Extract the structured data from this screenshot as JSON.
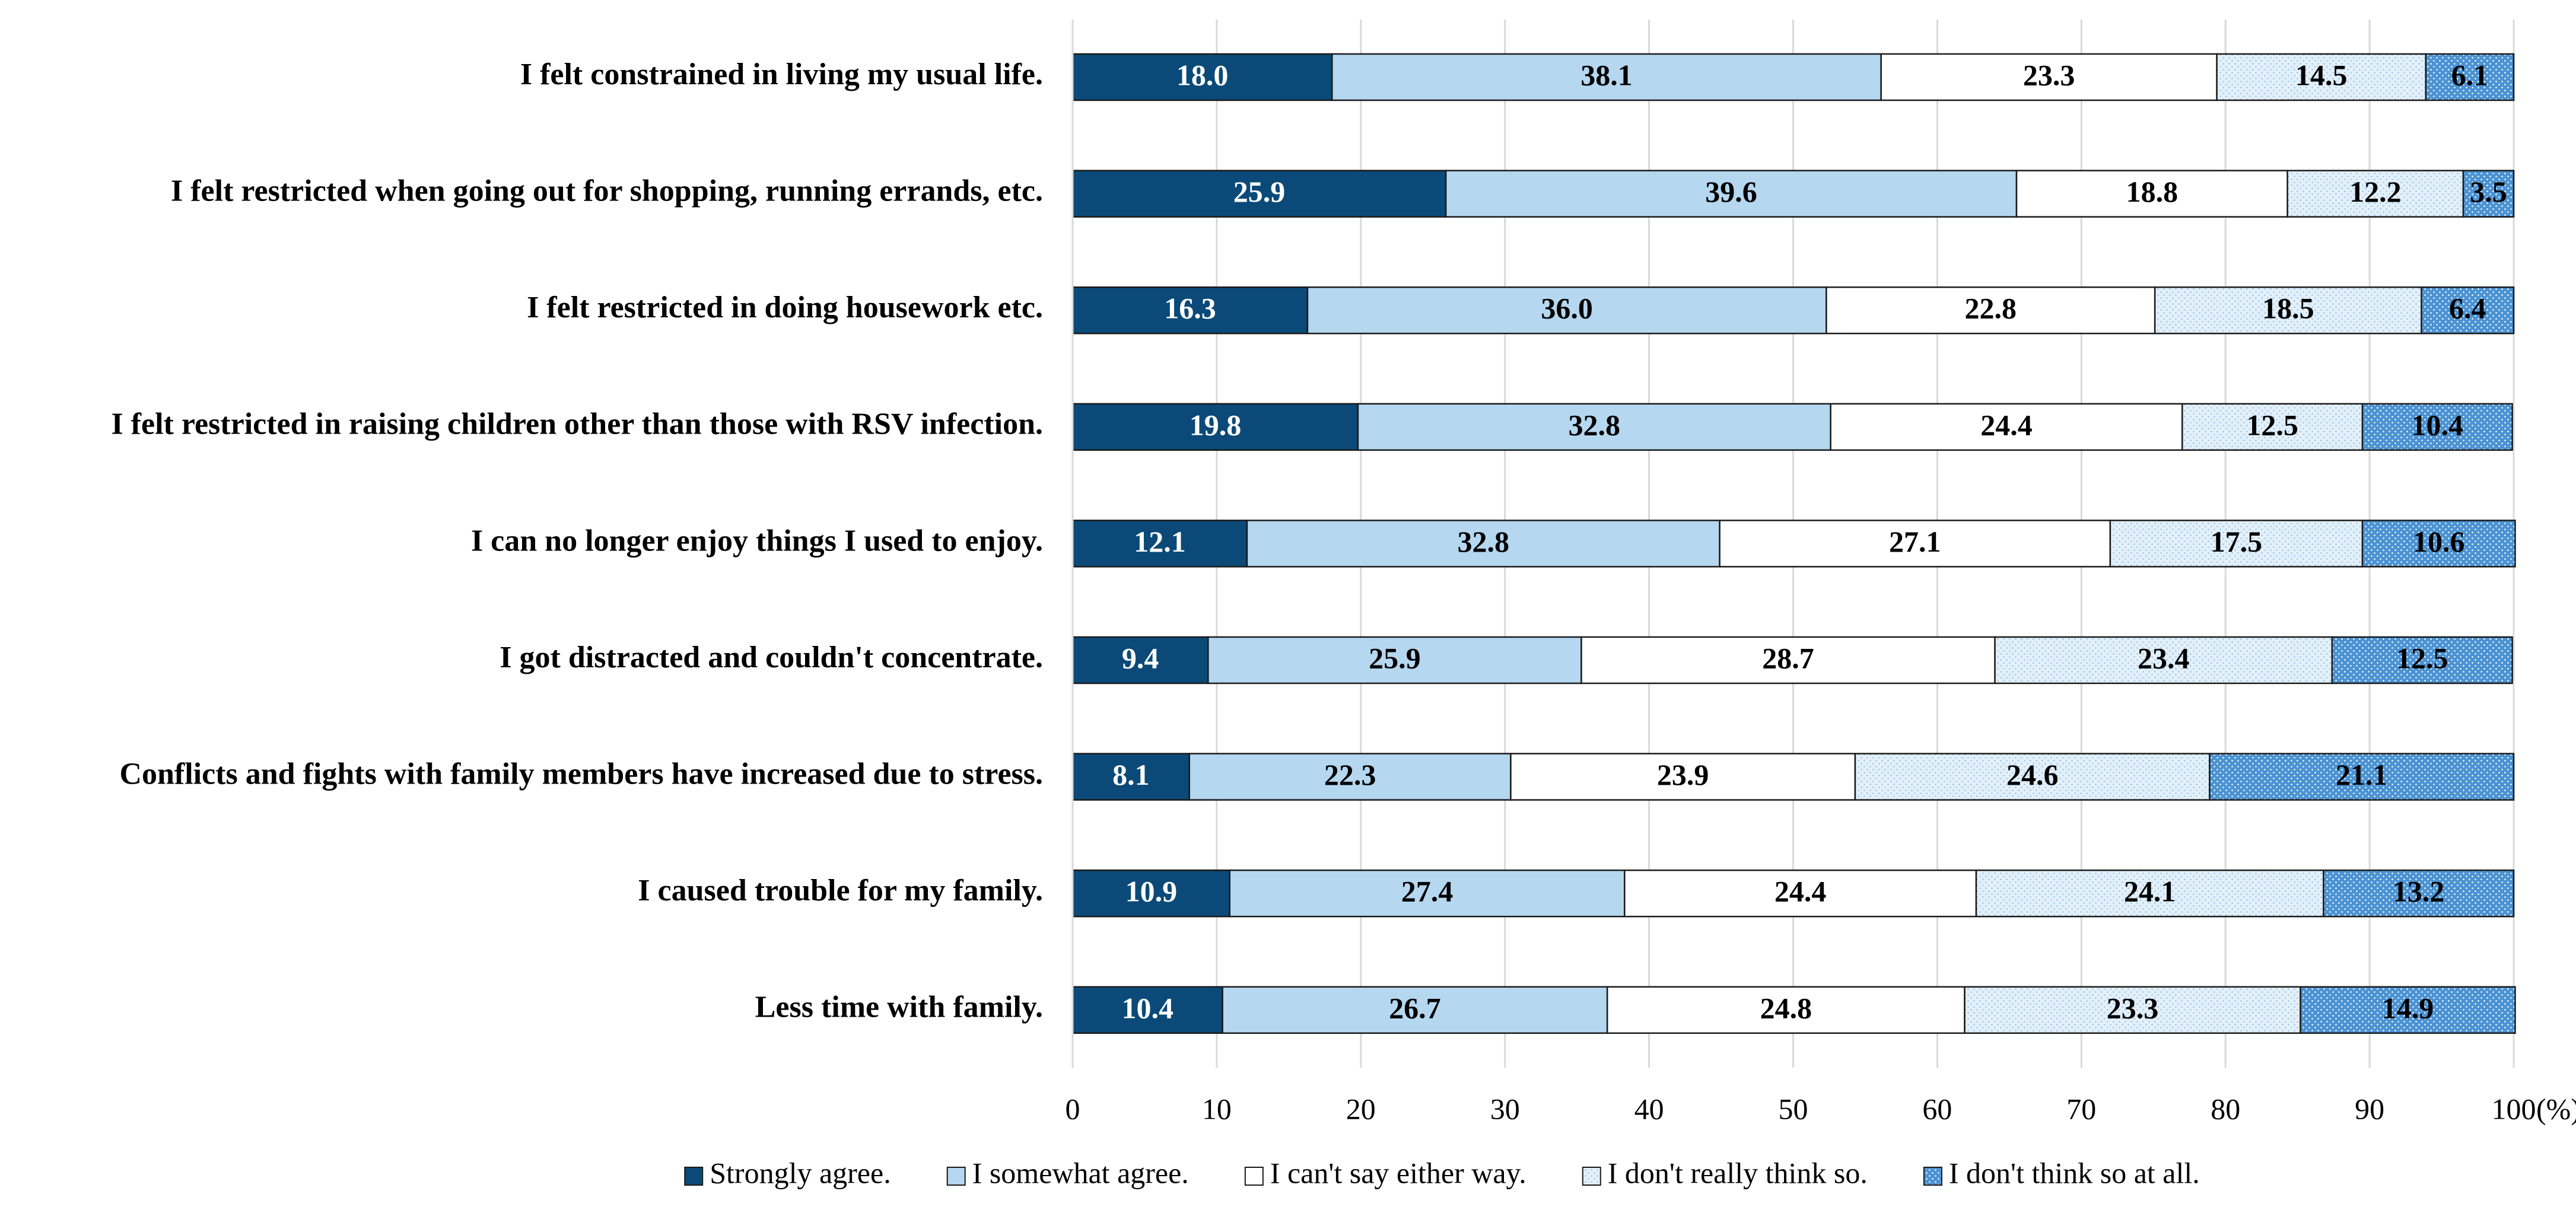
{
  "chart_data": {
    "type": "stacked_barh",
    "categories": [
      "I felt constrained in living my usual life.",
      "I felt restricted when going out for shopping, running errands, etc.",
      "I felt restricted in doing housework etc.",
      "I felt restricted in raising children other than those with RSV infection.",
      "I can no longer enjoy things I used to enjoy.",
      "I got distracted and couldn't concentrate.",
      "Conflicts and fights with family members have increased due to stress.",
      "I caused trouble for my family.",
      "Less time with family."
    ],
    "series": [
      {
        "name": "Strongly agree.",
        "color": "#0b4a78",
        "pattern": "none",
        "values": [
          18.0,
          25.9,
          16.3,
          19.8,
          12.1,
          9.4,
          8.1,
          10.9,
          10.4
        ],
        "value_labels": [
          "18.0",
          "25.9",
          "16.3",
          "19.8",
          "12.1",
          "9.4",
          "8.1",
          "10.9",
          "10.4"
        ]
      },
      {
        "name": "I somewhat agree.",
        "color": "#b5d7f0",
        "pattern": "none",
        "values": [
          38.1,
          39.6,
          36.0,
          32.8,
          32.8,
          25.9,
          22.3,
          27.4,
          26.7
        ],
        "value_labels": [
          "38.1",
          "39.6",
          "36.0",
          "32.8",
          "32.8",
          "25.9",
          "22.3",
          "27.4",
          "26.7"
        ]
      },
      {
        "name": "I can't say either way.",
        "color": "#ffffff",
        "pattern": "none",
        "values": [
          23.3,
          18.8,
          22.8,
          24.4,
          27.1,
          28.7,
          23.9,
          24.4,
          24.8
        ],
        "value_labels": [
          "23.3",
          "18.8",
          "22.8",
          "24.4",
          "27.1",
          "28.7",
          "23.9",
          "24.4",
          "24.8"
        ]
      },
      {
        "name": "I don't really think so.",
        "color": "#e3f0fa",
        "pattern": "dots",
        "values": [
          14.5,
          12.2,
          18.5,
          12.5,
          17.5,
          23.4,
          24.6,
          24.1,
          23.3
        ],
        "value_labels": [
          "14.5",
          "12.2",
          "18.5",
          "12.5",
          "17.5",
          "23.4",
          "24.6",
          "24.1",
          "23.3"
        ]
      },
      {
        "name": "I don't think so at all.",
        "color": "#4b93d3",
        "pattern": "dots",
        "values": [
          6.1,
          3.5,
          6.4,
          10.4,
          10.6,
          12.5,
          21.1,
          13.2,
          14.9
        ],
        "value_labels": [
          "6.1",
          "3.5",
          "6.4",
          "10.4",
          "10.6",
          "12.5",
          "21.1",
          "13.2",
          "14.9"
        ]
      }
    ],
    "x_unit": "(%)",
    "xlim": [
      0,
      100
    ],
    "xticks": [
      0,
      10,
      20,
      30,
      40,
      50,
      60,
      70,
      80,
      90,
      100
    ],
    "grid": true,
    "legend": "bottom"
  }
}
